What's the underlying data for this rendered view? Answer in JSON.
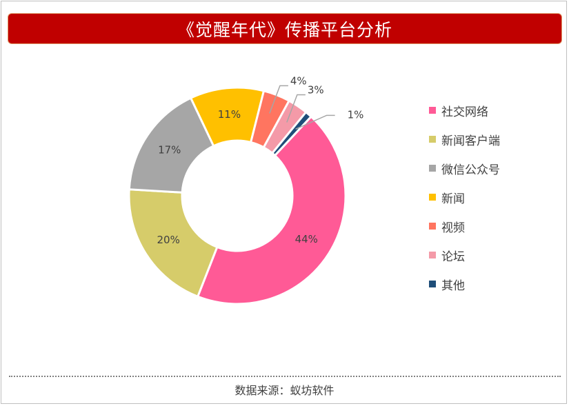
{
  "title": "《觉醒年代》传播平台分析",
  "source": "数据来源：蚁坊软件",
  "chart_data": {
    "type": "donut",
    "title": "《觉醒年代》传播平台分析",
    "legend_position": "right",
    "series": [
      {
        "name": "社交网络",
        "value": 44,
        "label": "44%",
        "color": "#ff5a96"
      },
      {
        "name": "新闻客户端",
        "value": 20,
        "label": "20%",
        "color": "#d6cc6a"
      },
      {
        "name": "微信公众号",
        "value": 17,
        "label": "17%",
        "color": "#a6a6a6"
      },
      {
        "name": "新闻",
        "value": 11,
        "label": "11%",
        "color": "#ffc000"
      },
      {
        "name": "视频",
        "value": 4,
        "label": "4%",
        "color": "#ff7560"
      },
      {
        "name": "论坛",
        "value": 3,
        "label": "3%",
        "color": "#f49aa8"
      },
      {
        "name": "其他",
        "value": 1,
        "label": "1%",
        "color": "#1f4e79"
      }
    ]
  }
}
